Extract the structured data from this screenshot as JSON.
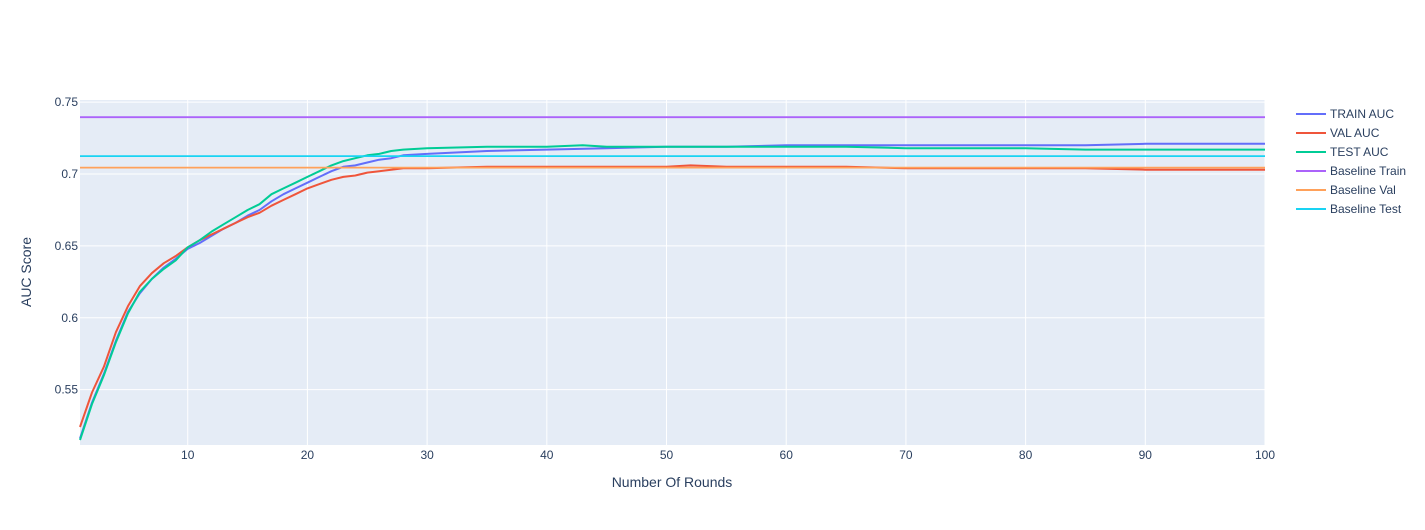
{
  "chart_data": {
    "type": "line",
    "title": "",
    "xlabel": "Number Of Rounds",
    "ylabel": "AUC Score",
    "xlim": [
      1,
      100
    ],
    "ylim": [
      0.5115,
      0.7515
    ],
    "x_ticks": [
      10,
      20,
      30,
      40,
      50,
      60,
      70,
      80,
      90,
      100
    ],
    "y_ticks": [
      0.55,
      0.6,
      0.65,
      0.7,
      0.75
    ],
    "grid": true,
    "legend_position": "right",
    "series": [
      {
        "name": "TRAIN AUC",
        "color": "#636efa",
        "points": [
          [
            1,
            0.516
          ],
          [
            2,
            0.541
          ],
          [
            3,
            0.561
          ],
          [
            4,
            0.584
          ],
          [
            5,
            0.604
          ],
          [
            6,
            0.617
          ],
          [
            7,
            0.627
          ],
          [
            8,
            0.635
          ],
          [
            9,
            0.641
          ],
          [
            10,
            0.648
          ],
          [
            11,
            0.652
          ],
          [
            12,
            0.657
          ],
          [
            13,
            0.662
          ],
          [
            14,
            0.666
          ],
          [
            15,
            0.671
          ],
          [
            16,
            0.675
          ],
          [
            17,
            0.681
          ],
          [
            18,
            0.686
          ],
          [
            19,
            0.69
          ],
          [
            20,
            0.694
          ],
          [
            21,
            0.698
          ],
          [
            22,
            0.702
          ],
          [
            23,
            0.705
          ],
          [
            24,
            0.706
          ],
          [
            25,
            0.708
          ],
          [
            26,
            0.71
          ],
          [
            27,
            0.711
          ],
          [
            28,
            0.713
          ],
          [
            30,
            0.714
          ],
          [
            35,
            0.716
          ],
          [
            40,
            0.717
          ],
          [
            45,
            0.718
          ],
          [
            50,
            0.719
          ],
          [
            55,
            0.719
          ],
          [
            60,
            0.72
          ],
          [
            65,
            0.72
          ],
          [
            70,
            0.72
          ],
          [
            75,
            0.72
          ],
          [
            80,
            0.72
          ],
          [
            85,
            0.72
          ],
          [
            90,
            0.721
          ],
          [
            95,
            0.721
          ],
          [
            100,
            0.721
          ]
        ]
      },
      {
        "name": "VAL AUC",
        "color": "#ef553b",
        "points": [
          [
            1,
            0.524
          ],
          [
            2,
            0.548
          ],
          [
            3,
            0.566
          ],
          [
            4,
            0.59
          ],
          [
            5,
            0.608
          ],
          [
            6,
            0.622
          ],
          [
            7,
            0.631
          ],
          [
            8,
            0.638
          ],
          [
            9,
            0.643
          ],
          [
            10,
            0.649
          ],
          [
            11,
            0.654
          ],
          [
            12,
            0.658
          ],
          [
            13,
            0.662
          ],
          [
            14,
            0.666
          ],
          [
            15,
            0.67
          ],
          [
            16,
            0.673
          ],
          [
            17,
            0.678
          ],
          [
            18,
            0.682
          ],
          [
            19,
            0.686
          ],
          [
            20,
            0.69
          ],
          [
            21,
            0.693
          ],
          [
            22,
            0.696
          ],
          [
            23,
            0.698
          ],
          [
            24,
            0.699
          ],
          [
            25,
            0.701
          ],
          [
            26,
            0.702
          ],
          [
            27,
            0.703
          ],
          [
            28,
            0.704
          ],
          [
            30,
            0.704
          ],
          [
            35,
            0.705
          ],
          [
            40,
            0.705
          ],
          [
            45,
            0.705
          ],
          [
            50,
            0.705
          ],
          [
            52,
            0.706
          ],
          [
            55,
            0.705
          ],
          [
            60,
            0.705
          ],
          [
            65,
            0.705
          ],
          [
            70,
            0.704
          ],
          [
            75,
            0.704
          ],
          [
            80,
            0.704
          ],
          [
            85,
            0.704
          ],
          [
            90,
            0.703
          ],
          [
            95,
            0.703
          ],
          [
            100,
            0.703
          ]
        ]
      },
      {
        "name": "TEST AUC",
        "color": "#00cc96",
        "points": [
          [
            1,
            0.515
          ],
          [
            2,
            0.54
          ],
          [
            3,
            0.56
          ],
          [
            4,
            0.583
          ],
          [
            5,
            0.603
          ],
          [
            6,
            0.618
          ],
          [
            7,
            0.627
          ],
          [
            8,
            0.634
          ],
          [
            9,
            0.64
          ],
          [
            10,
            0.649
          ],
          [
            11,
            0.654
          ],
          [
            12,
            0.66
          ],
          [
            13,
            0.665
          ],
          [
            14,
            0.67
          ],
          [
            15,
            0.675
          ],
          [
            16,
            0.679
          ],
          [
            17,
            0.686
          ],
          [
            18,
            0.69
          ],
          [
            19,
            0.694
          ],
          [
            20,
            0.698
          ],
          [
            21,
            0.702
          ],
          [
            22,
            0.706
          ],
          [
            23,
            0.709
          ],
          [
            24,
            0.711
          ],
          [
            25,
            0.713
          ],
          [
            26,
            0.714
          ],
          [
            27,
            0.716
          ],
          [
            28,
            0.717
          ],
          [
            30,
            0.718
          ],
          [
            35,
            0.719
          ],
          [
            40,
            0.719
          ],
          [
            43,
            0.72
          ],
          [
            45,
            0.719
          ],
          [
            50,
            0.719
          ],
          [
            55,
            0.719
          ],
          [
            60,
            0.719
          ],
          [
            65,
            0.719
          ],
          [
            70,
            0.718
          ],
          [
            75,
            0.718
          ],
          [
            80,
            0.718
          ],
          [
            85,
            0.717
          ],
          [
            90,
            0.717
          ],
          [
            95,
            0.717
          ],
          [
            100,
            0.717
          ]
        ]
      },
      {
        "name": "Baseline Train",
        "color": "#ab63fa",
        "points": [
          [
            1,
            0.7395
          ],
          [
            100,
            0.7395
          ]
        ]
      },
      {
        "name": "Baseline Val",
        "color": "#ffa15a",
        "points": [
          [
            1,
            0.7045
          ],
          [
            100,
            0.7045
          ]
        ]
      },
      {
        "name": "Baseline Test",
        "color": "#19d3f3",
        "points": [
          [
            1,
            0.7125
          ],
          [
            100,
            0.7125
          ]
        ]
      }
    ]
  }
}
